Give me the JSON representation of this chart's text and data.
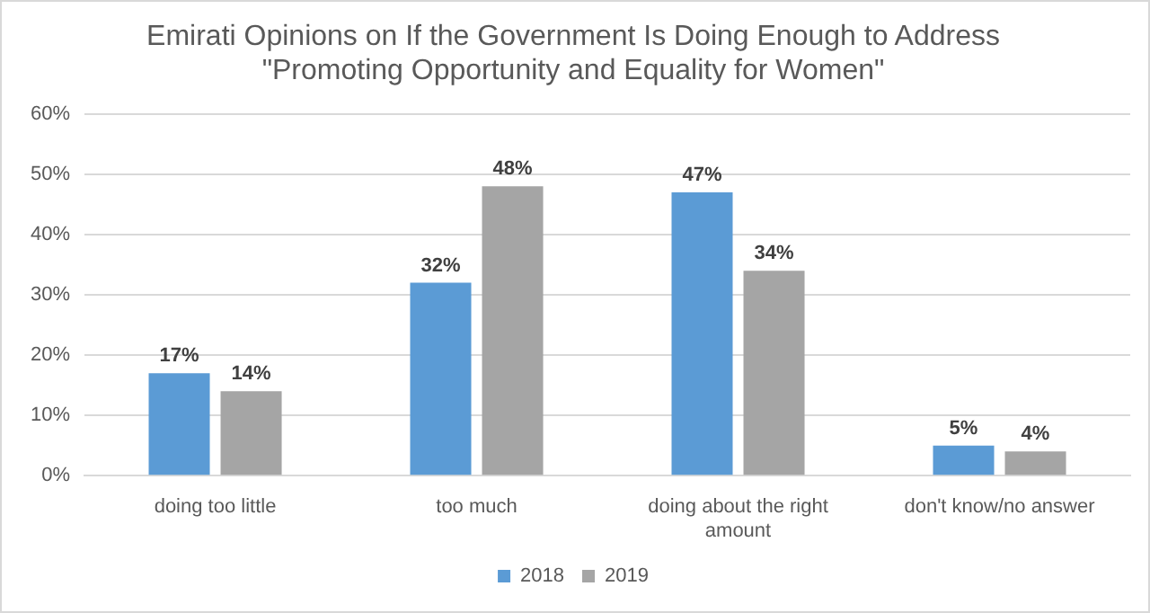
{
  "chart_data": {
    "type": "bar",
    "title": "Emirati Opinions on If the Government Is Doing Enough to Address\n\"Promoting Opportunity and Equality for Women\"",
    "categories": [
      "doing too little",
      "too much",
      "doing about the right amount",
      "don't know/no answer"
    ],
    "series": [
      {
        "name": "2018",
        "color": "#5b9bd5",
        "values": [
          17,
          32,
          47,
          5
        ],
        "value_labels": [
          "17%",
          "32%",
          "47%",
          "5%"
        ]
      },
      {
        "name": "2019",
        "color": "#a5a5a5",
        "values": [
          14,
          48,
          34,
          4
        ],
        "value_labels": [
          "14%",
          "48%",
          "34%",
          "4%"
        ]
      }
    ],
    "ylim": [
      0,
      60
    ],
    "yticks": [
      {
        "value": 0,
        "label": "0%"
      },
      {
        "value": 10,
        "label": "10%"
      },
      {
        "value": 20,
        "label": "20%"
      },
      {
        "value": 30,
        "label": "30%"
      },
      {
        "value": 40,
        "label": "40%"
      },
      {
        "value": 50,
        "label": "50%"
      },
      {
        "value": 60,
        "label": "60%"
      }
    ],
    "grid": "y",
    "legend": "bottom"
  }
}
